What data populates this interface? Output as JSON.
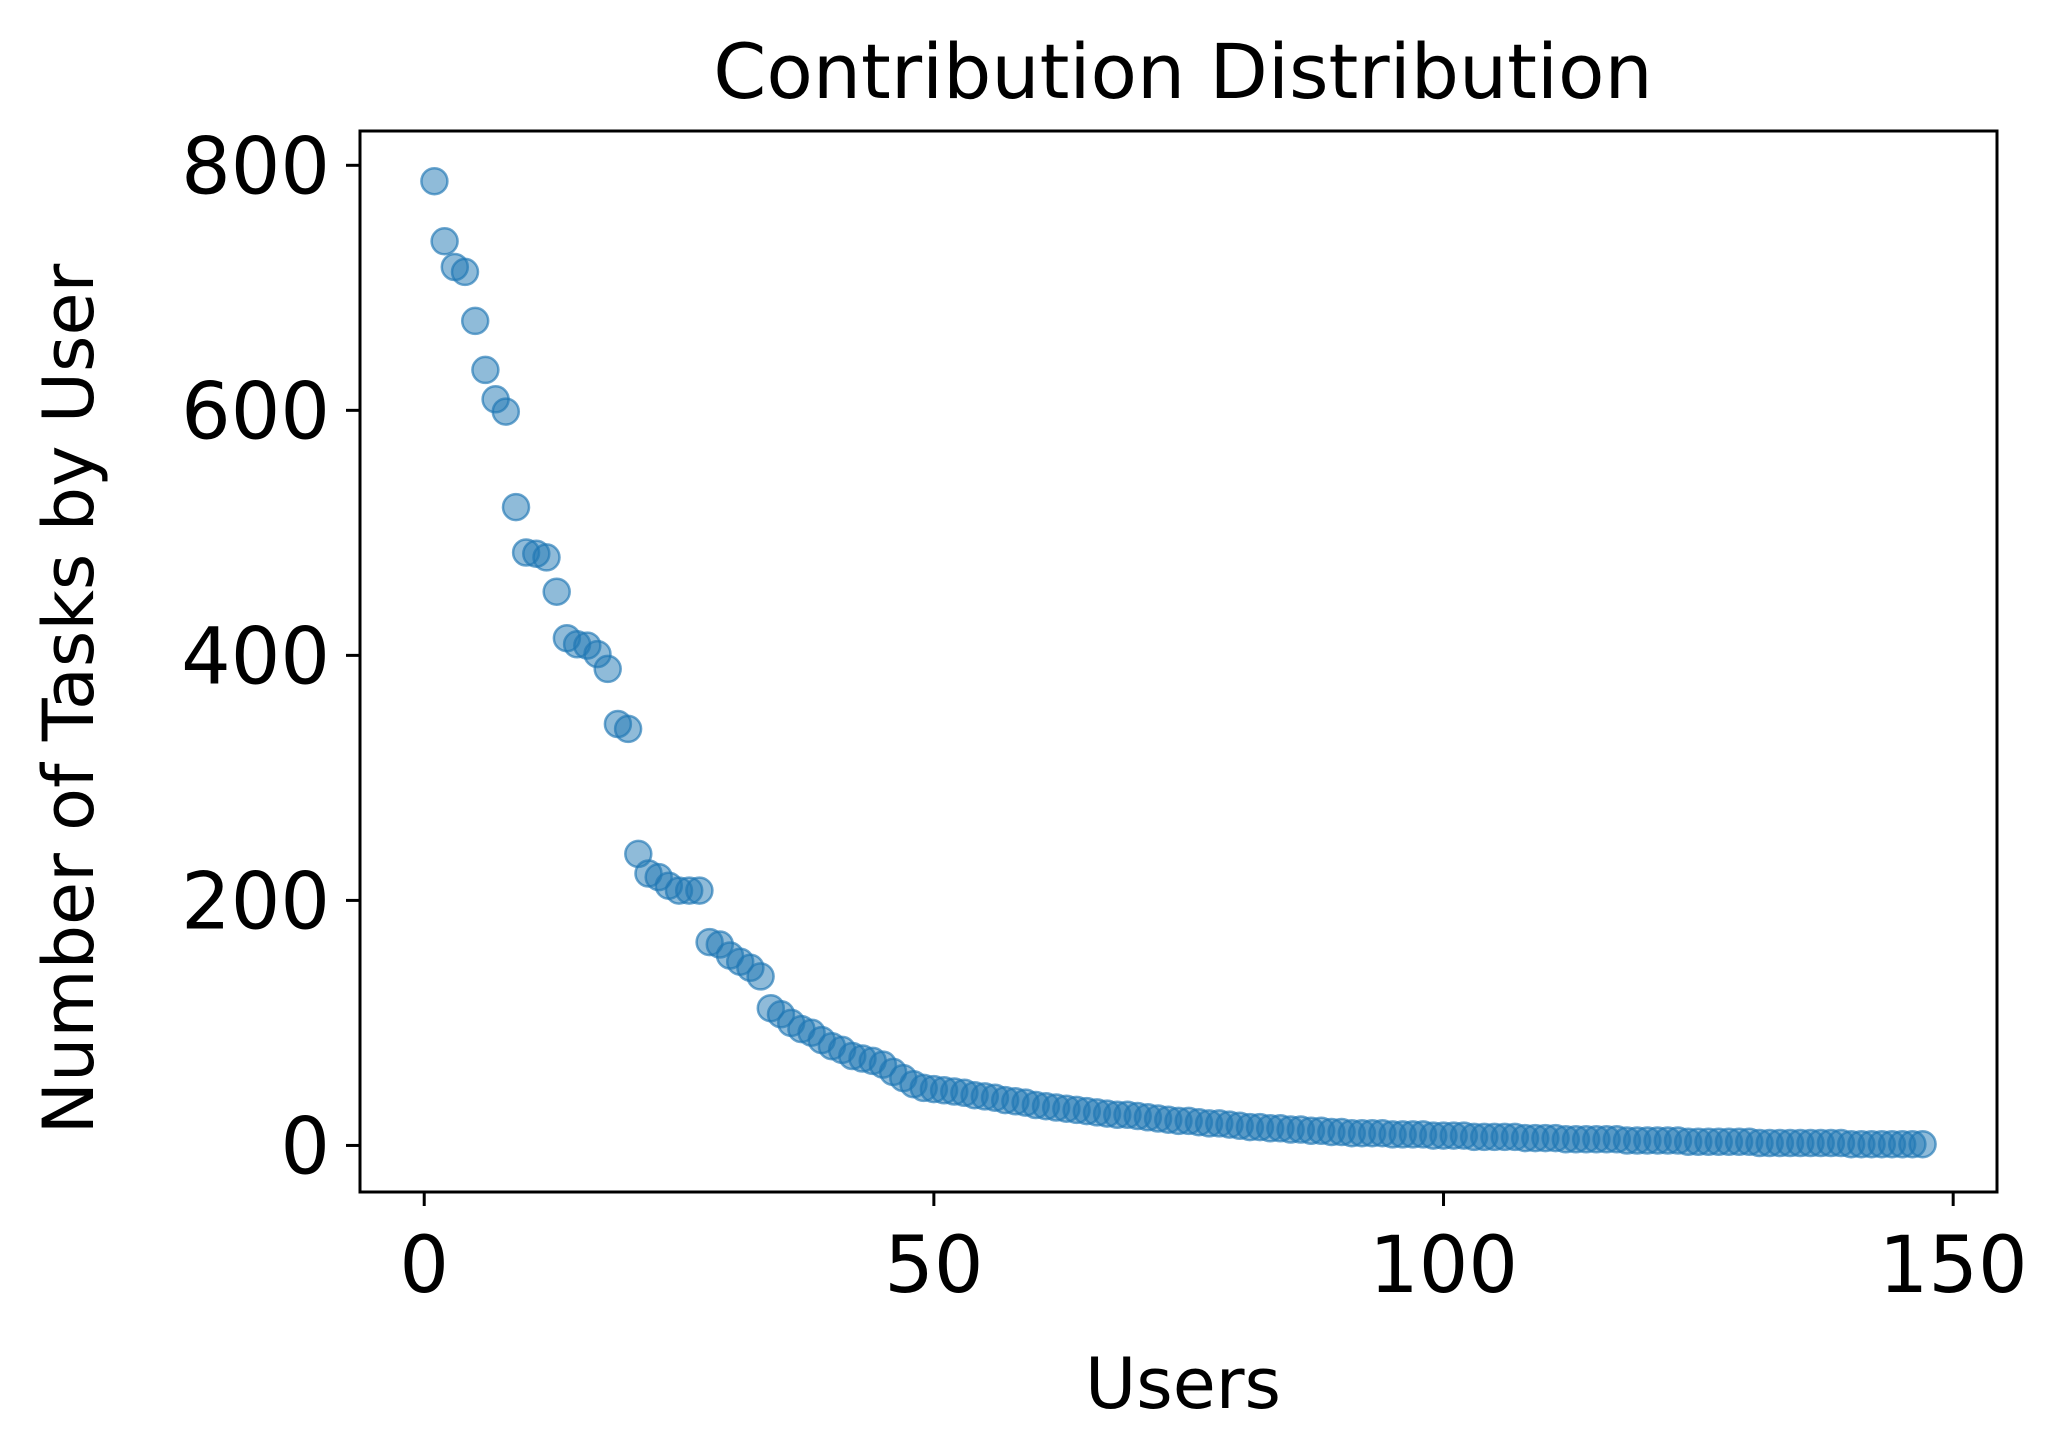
{
  "chart_data": {
    "type": "scatter",
    "title": "Contribution Distribution",
    "xlabel": "Users",
    "ylabel": "Number of Tasks by User",
    "xlim": [
      -6.3,
      154.3
    ],
    "ylim": [
      -38,
      828
    ],
    "xticks": [
      0,
      50,
      100,
      150
    ],
    "yticks": [
      0,
      200,
      400,
      600,
      800
    ],
    "grid": false,
    "legend": "none",
    "marker_color": "#1f77b4",
    "marker_alpha": 0.5,
    "series": [
      {
        "x": [
          1,
          2,
          3,
          4,
          5,
          6,
          7,
          8,
          9,
          10,
          11,
          12,
          13,
          14,
          15,
          16,
          17,
          18,
          19,
          20,
          21,
          22,
          23,
          24,
          25,
          26,
          27,
          28,
          29,
          30,
          31,
          32,
          33,
          34,
          35,
          36,
          37,
          38,
          39,
          40,
          41,
          42,
          43,
          44,
          45,
          46,
          47,
          48,
          49,
          50,
          51,
          52,
          53,
          54,
          55,
          56,
          57,
          58,
          59,
          60,
          61,
          62,
          63,
          64,
          65,
          66,
          67,
          68,
          69,
          70,
          71,
          72,
          73,
          74,
          75,
          76,
          77,
          78,
          79,
          80,
          81,
          82,
          83,
          84,
          85,
          86,
          87,
          88,
          89,
          90,
          91,
          92,
          93,
          94,
          95,
          96,
          97,
          98,
          99,
          100,
          101,
          102,
          103,
          104,
          105,
          106,
          107,
          108,
          109,
          110,
          111,
          112,
          113,
          114,
          115,
          116,
          117,
          118,
          119,
          120,
          121,
          122,
          123,
          124,
          125,
          126,
          127,
          128,
          129,
          130,
          131,
          132,
          133,
          134,
          135,
          136,
          137,
          138,
          139,
          140,
          141,
          142,
          143,
          144,
          145,
          146,
          147
        ],
        "y": [
          787,
          738,
          717,
          713,
          673,
          633,
          609,
          599,
          521,
          484,
          483,
          480,
          452,
          414,
          409,
          408,
          401,
          389,
          344,
          340,
          238,
          222,
          219,
          212,
          208,
          208,
          208,
          166,
          164,
          155,
          150,
          145,
          138,
          112,
          107,
          100,
          95,
          92,
          86,
          81,
          78,
          73,
          71,
          69,
          66,
          60,
          55,
          50,
          47,
          46,
          45,
          44,
          43,
          41,
          40,
          39,
          37,
          36,
          35,
          33,
          32,
          31,
          30,
          29,
          28,
          27,
          26,
          25,
          25,
          24,
          23,
          22,
          21,
          20,
          20,
          19,
          18,
          18,
          17,
          16,
          15,
          15,
          14,
          14,
          13,
          13,
          12,
          12,
          11,
          11,
          10,
          10,
          10,
          10,
          9,
          9,
          9,
          9,
          8,
          8,
          8,
          8,
          7,
          7,
          7,
          7,
          7,
          6,
          6,
          6,
          6,
          5,
          5,
          5,
          5,
          5,
          5,
          4,
          4,
          4,
          4,
          4,
          4,
          3,
          3,
          3,
          3,
          3,
          3,
          3,
          2,
          2,
          2,
          2,
          2,
          2,
          2,
          2,
          2,
          1,
          1,
          1,
          1,
          1,
          1,
          1,
          1
        ]
      }
    ]
  }
}
